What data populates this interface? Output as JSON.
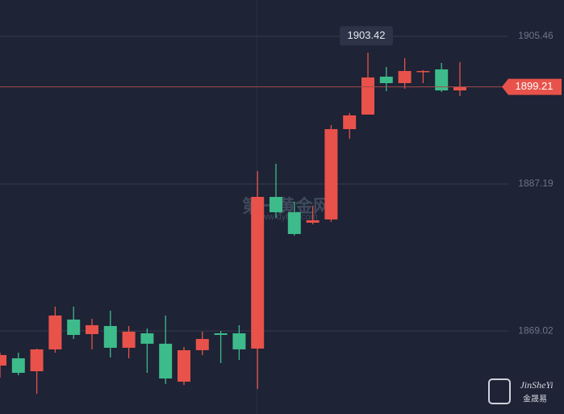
{
  "chart_data": {
    "type": "candlestick",
    "open": [
      1864.74,
      1865.64,
      1864.04,
      1866.74,
      1870.43,
      1868.63,
      1869.63,
      1866.94,
      1868.73,
      1867.44,
      1862.75,
      1866.64,
      1868.73,
      1868.73,
      1866.84,
      1885.6,
      1883.7,
      1882.41,
      1882.81,
      1893.98,
      1895.78,
      1900.47,
      1899.67,
      1901.07,
      1901.37,
      1898.77
    ],
    "high": [
      1866.34,
      1866.34,
      1866.84,
      1872.03,
      1872.03,
      1870.53,
      1871.53,
      1869.63,
      1869.33,
      1870.93,
      1867.04,
      1868.93,
      1869.03,
      1869.73,
      1888.79,
      1889.69,
      1885.0,
      1884.5,
      1894.48,
      1895.98,
      1903.42,
      1901.67,
      1902.76,
      1901.27,
      1902.17,
      1902.27
    ],
    "low": [
      1863.24,
      1863.54,
      1861.25,
      1866.34,
      1868.03,
      1866.74,
      1865.74,
      1865.64,
      1863.84,
      1862.45,
      1862.35,
      1866.04,
      1865.04,
      1865.44,
      1861.85,
      1883.0,
      1880.81,
      1882.21,
      1882.51,
      1892.78,
      1895.78,
      1898.67,
      1898.97,
      1899.67,
      1898.57,
      1898.07
    ],
    "close": [
      1866.04,
      1863.84,
      1866.74,
      1870.93,
      1868.53,
      1869.73,
      1866.94,
      1868.93,
      1867.44,
      1863.14,
      1866.64,
      1868.03,
      1868.53,
      1866.74,
      1885.6,
      1883.7,
      1881.01,
      1882.71,
      1893.98,
      1895.68,
      1900.37,
      1899.67,
      1901.17,
      1901.17,
      1898.77,
      1899.21
    ],
    "up_color": "#e8524a",
    "down_color": "#3dbb8b",
    "ylim": [
      1858.75,
      1909.95
    ],
    "yticks": [
      1869.02,
      1887.19,
      1905.46
    ],
    "grid": true,
    "max_marker_index": 20,
    "last_price_index": 25,
    "watermark": "第一黄金网",
    "watermark_url": "www.dyhjw.com",
    "logo_text": "JinSheYi",
    "logo_subtext": "金晟易"
  }
}
